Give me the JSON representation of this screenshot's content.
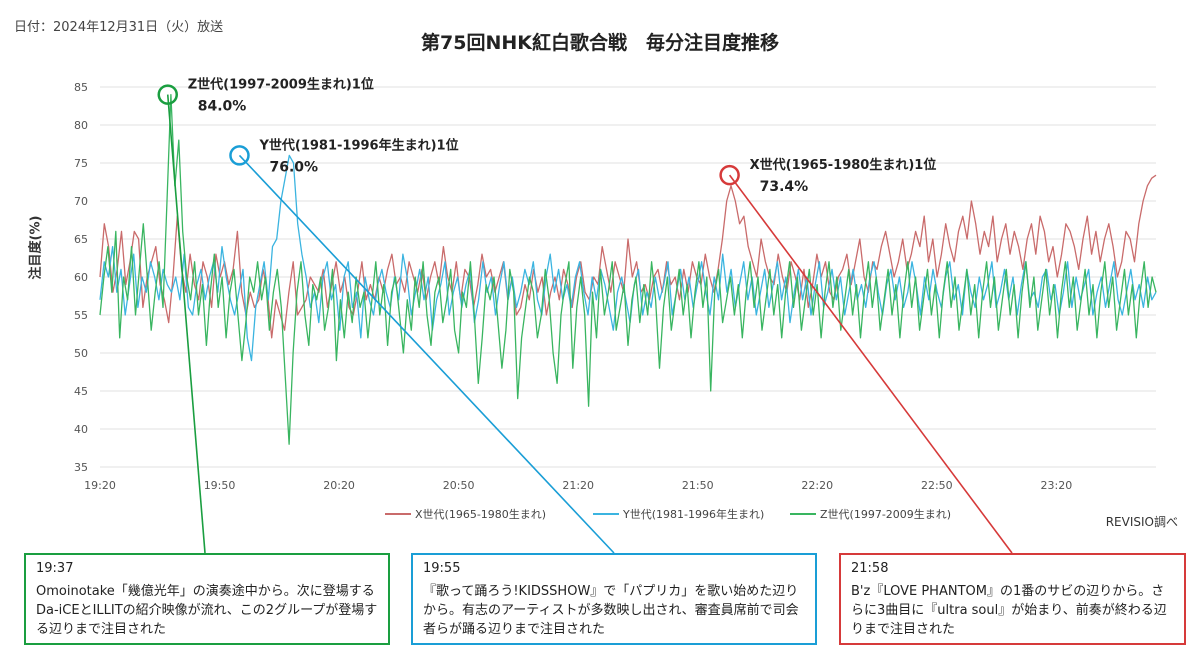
{
  "header": {
    "date": "日付：2024年12月31日（火）放送",
    "title": "第75回NHK紅白歌合戦　毎分注目度推移"
  },
  "chart_data": {
    "type": "line",
    "title": "第75回NHK紅白歌合戦　毎分注目度推移",
    "xlabel": "",
    "ylabel": "注目度(%)",
    "ylim": [
      35,
      85
    ],
    "yticks": [
      35,
      40,
      45,
      50,
      55,
      60,
      65,
      70,
      75,
      80,
      85
    ],
    "xticks": [
      "19:20",
      "19:50",
      "20:20",
      "20:50",
      "21:20",
      "21:50",
      "22:20",
      "22:50",
      "23:20"
    ],
    "x_start": "19:20",
    "x_end": "23:45",
    "grid": true,
    "legend_position": "bottom",
    "series": [
      {
        "name": "X世代(1965-1980生まれ)",
        "color": "#c96b6b",
        "values": [
          60,
          67,
          64,
          58,
          61,
          66,
          59,
          62,
          66,
          65,
          56,
          60,
          62,
          64,
          59,
          57,
          54,
          60,
          68,
          61,
          58,
          63,
          59,
          57,
          62,
          60,
          56,
          63,
          60,
          62,
          59,
          61,
          66,
          58,
          55,
          58,
          56,
          57,
          61,
          58,
          52,
          57,
          55,
          53,
          58,
          62,
          55,
          56,
          57,
          60,
          59,
          58,
          61,
          56,
          59,
          62,
          58,
          60,
          56,
          55,
          58,
          62,
          57,
          59,
          57,
          60,
          58,
          61,
          63,
          59,
          60,
          58,
          62,
          60,
          58,
          61,
          57,
          60,
          62,
          59,
          64,
          60,
          58,
          62,
          57,
          61,
          60,
          56,
          59,
          63,
          60,
          61,
          58,
          60,
          62,
          57,
          60,
          55,
          56,
          59,
          57,
          61,
          58,
          60,
          55,
          58,
          60,
          57,
          61,
          59,
          56,
          60,
          62,
          58,
          57,
          60,
          59,
          64,
          61,
          58,
          62,
          60,
          58,
          65,
          60,
          62,
          58,
          59,
          57,
          60,
          61,
          58,
          62,
          59,
          60,
          57,
          61,
          58,
          62,
          60,
          59,
          63,
          60,
          58,
          61,
          65,
          70,
          72,
          70,
          67,
          68,
          64,
          62,
          60,
          65,
          62,
          60,
          59,
          63,
          60,
          58,
          62,
          60,
          57,
          61,
          56,
          59,
          63,
          60,
          62,
          58,
          57,
          60,
          61,
          63,
          59,
          62,
          65,
          60,
          58,
          62,
          61,
          64,
          66,
          63,
          60,
          62,
          65,
          61,
          63,
          66,
          64,
          68,
          62,
          65,
          60,
          63,
          67,
          64,
          62,
          66,
          68,
          65,
          70,
          67,
          63,
          66,
          64,
          68,
          62,
          65,
          67,
          63,
          66,
          64,
          61,
          65,
          67,
          63,
          68,
          66,
          62,
          64,
          60,
          63,
          67,
          66,
          64,
          61,
          65,
          68,
          63,
          66,
          62,
          65,
          67,
          64,
          60,
          62,
          66,
          65,
          62,
          67,
          70,
          72,
          73,
          73.4
        ]
      },
      {
        "name": "Y世代(1981-1996年生まれ)",
        "color": "#3bb4e0",
        "values": [
          57,
          62,
          60,
          64,
          58,
          61,
          55,
          59,
          63,
          56,
          60,
          58,
          62,
          60,
          57,
          61,
          59,
          58,
          60,
          57,
          63,
          56,
          55,
          59,
          61,
          57,
          60,
          62,
          58,
          64,
          60,
          57,
          55,
          58,
          61,
          52,
          49,
          56,
          59,
          62,
          57,
          64,
          65,
          70,
          73,
          76,
          75,
          67,
          63,
          60,
          56,
          58,
          54,
          60,
          62,
          57,
          59,
          53,
          60,
          62,
          56,
          58,
          52,
          60,
          57,
          55,
          59,
          61,
          58,
          56,
          60,
          57,
          63,
          60,
          55,
          58,
          61,
          57,
          60,
          53,
          57,
          59,
          62,
          55,
          58,
          60,
          56,
          59,
          61,
          54,
          57,
          62,
          58,
          60,
          55,
          59,
          62,
          57,
          60,
          56,
          58,
          61,
          59,
          62,
          57,
          55,
          60,
          63,
          58,
          61,
          57,
          59,
          56,
          60,
          62,
          58,
          55,
          60,
          57,
          61,
          59,
          56,
          53,
          58,
          60,
          57,
          54,
          59,
          61,
          55,
          58,
          56,
          60,
          57,
          59,
          62,
          55,
          58,
          61,
          57,
          60,
          56,
          59,
          62,
          58,
          55,
          60,
          57,
          63,
          58,
          61,
          56,
          59,
          62,
          57,
          60,
          55,
          58,
          61,
          56,
          59,
          62,
          57,
          60,
          54,
          58,
          61,
          57,
          60,
          55,
          59,
          62,
          56,
          58,
          61,
          57,
          60,
          55,
          58,
          61,
          57,
          59,
          56,
          60,
          62,
          58,
          55,
          59,
          61,
          57,
          60,
          56,
          58,
          62,
          59,
          55,
          60,
          57,
          61,
          58,
          56,
          60,
          62,
          57,
          59,
          55,
          61,
          58,
          56,
          60,
          57,
          59,
          62,
          56,
          58,
          61,
          57,
          60,
          55,
          59,
          62,
          57,
          58,
          56,
          60,
          61,
          57,
          59,
          55,
          58,
          62,
          56,
          60,
          57,
          59,
          61,
          55,
          58,
          60,
          56,
          59,
          62,
          57,
          55,
          58,
          61,
          57,
          59,
          56,
          60,
          57,
          58
        ]
      },
      {
        "name": "Z世代(1997-2009生まれ)",
        "color": "#39b560",
        "values": [
          55,
          60,
          64,
          58,
          66,
          52,
          60,
          57,
          64,
          55,
          61,
          67,
          60,
          53,
          58,
          62,
          56,
          70,
          84,
          72,
          78,
          66,
          60,
          57,
          62,
          55,
          59,
          51,
          58,
          63,
          56,
          60,
          52,
          58,
          61,
          55,
          49,
          54,
          60,
          58,
          62,
          57,
          60,
          53,
          58,
          61,
          56,
          47,
          38,
          50,
          58,
          62,
          55,
          51,
          59,
          57,
          60,
          53,
          56,
          61,
          49,
          57,
          52,
          58,
          54,
          60,
          56,
          58,
          52,
          57,
          62,
          55,
          59,
          51,
          58,
          60,
          55,
          50,
          57,
          53,
          60,
          56,
          62,
          55,
          51,
          58,
          60,
          54,
          57,
          61,
          53,
          50,
          58,
          56,
          62,
          55,
          46,
          52,
          59,
          57,
          60,
          54,
          48,
          53,
          61,
          58,
          44,
          52,
          56,
          60,
          58,
          52,
          55,
          61,
          57,
          50,
          46,
          55,
          59,
          62,
          48,
          56,
          60,
          55,
          43,
          58,
          52,
          61,
          55,
          58,
          62,
          53,
          56,
          59,
          51,
          57,
          60,
          54,
          59,
          55,
          62,
          57,
          48,
          56,
          60,
          53,
          57,
          61,
          55,
          59,
          52,
          58,
          62,
          56,
          60,
          45,
          58,
          61,
          54,
          57,
          60,
          55,
          59,
          52,
          58,
          62,
          56,
          60,
          53,
          57,
          61,
          55,
          59,
          52,
          58,
          62,
          56,
          60,
          53,
          57,
          61,
          55,
          59,
          52,
          58,
          62,
          56,
          60,
          53,
          57,
          61,
          55,
          59,
          52,
          58,
          62,
          56,
          60,
          53,
          57,
          61,
          55,
          59,
          52,
          58,
          62,
          56,
          60,
          53,
          57,
          61,
          55,
          59,
          52,
          58,
          62,
          56,
          60,
          53,
          57,
          61,
          55,
          59,
          52,
          58,
          62,
          56,
          60,
          53,
          57,
          61,
          55,
          59,
          52,
          58,
          62,
          56,
          60,
          53,
          57,
          61,
          55,
          59,
          52,
          58,
          62,
          56,
          60,
          53,
          57,
          61,
          55,
          59,
          52,
          58,
          62,
          56,
          60,
          53,
          57,
          61,
          55,
          59,
          52,
          58,
          62,
          56,
          60,
          58
        ]
      }
    ],
    "annotations": [
      {
        "label": "Z世代(1997-2009生まれ)1位",
        "value": "84.0%",
        "time": "19:37",
        "y": 84.0,
        "color": "#1a9e40"
      },
      {
        "label": "Y世代(1981-1996年生まれ)1位",
        "value": "76.0%",
        "time": "19:55",
        "y": 76.0,
        "color": "#1a9ed6"
      },
      {
        "label": "X世代(1965-1980生まれ)1位",
        "value": "73.4%",
        "time": "21:58",
        "y": 73.4,
        "color": "#d63a3a"
      }
    ]
  },
  "source": "REVISIO調べ",
  "notes": [
    {
      "time": "19:37",
      "text": "Omoinotake「幾億光年」の演奏途中から。次に登場するDa-iCEとILLITの紹介映像が流れ、この2グループが登場する辺りまで注目された",
      "color": "#1a9e40"
    },
    {
      "time": "19:55",
      "text": "『歌って踊ろう!KIDSSHOW』で「パプリカ」を歌い始めた辺りから。有志のアーティストが多数映し出され、審査員席前で司会者らが踊る辺りまで注目された",
      "color": "#1a9ed6"
    },
    {
      "time": "21:58",
      "text": "B'z『LOVE PHANTOM』の1番のサビの辺りから。さらに3曲目に『ultra soul』が始まり、前奏が終わる辺りまで注目された",
      "color": "#d63a3a"
    }
  ]
}
